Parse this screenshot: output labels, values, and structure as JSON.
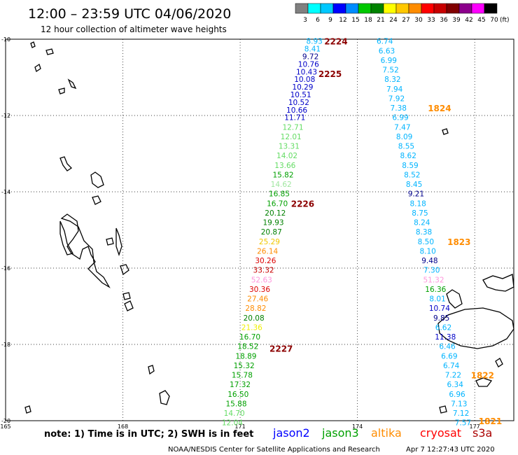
{
  "header": {
    "title": "12:00 – 23:59 UTC 04/06/2020",
    "subtitle": "12 hour collection of altimeter wave heights"
  },
  "colorbar": {
    "levels": [
      "3",
      "6",
      "9",
      "12",
      "15",
      "18",
      "21",
      "24",
      "27",
      "30",
      "33",
      "36",
      "39",
      "42",
      "45",
      "70"
    ],
    "unit": "(ft)",
    "colors": [
      "#808080",
      "#00ffff",
      "#00c8ff",
      "#0000ff",
      "#008cff",
      "#00c800",
      "#008200",
      "#ffff00",
      "#ffc800",
      "#ff8c00",
      "#ff0000",
      "#c80000",
      "#800000",
      "#8c008c",
      "#ff00ff",
      "#000000"
    ]
  },
  "footer": {
    "note": "note: 1) Time is in UTC; 2) SWH is in feet",
    "credit": "NOAA/NESDIS Center for Satellite Applications and Research",
    "timestamp": "Apr  7 12:27:43 UTC 2020"
  },
  "legend": [
    {
      "name": "jason2",
      "color": "#0000ff"
    },
    {
      "name": "jason3",
      "color": "#00a000"
    },
    {
      "name": "altika",
      "color": "#ff8c00"
    },
    {
      "name": "cryosat",
      "color": "#ff0000"
    },
    {
      "name": "s3a",
      "color": "#aa0000"
    }
  ],
  "chart_data": {
    "type": "scatter",
    "title": "12:00 – 23:59 UTC 04/06/2020",
    "subtitle": "12 hour collection of altimeter wave heights",
    "xlabel": "",
    "ylabel": "",
    "xlim": [
      165,
      178
    ],
    "ylim": [
      -20,
      -10
    ],
    "x_ticks": [
      "165",
      "168",
      "171",
      "174",
      "177"
    ],
    "y_ticks": [
      "-10",
      "-12",
      "-14",
      "-16",
      "-18",
      "-20"
    ],
    "grid": "dotted",
    "tracks": [
      {
        "points": [
          {
            "x": 172.9,
            "y": -10.05,
            "v": "8.93",
            "c": "#00b4ff"
          },
          {
            "x": 172.85,
            "y": -10.25,
            "v": "8.41",
            "c": "#00b4ff"
          },
          {
            "x": 172.8,
            "y": -10.45,
            "v": "9.72",
            "c": "#00008c"
          },
          {
            "x": 172.75,
            "y": -10.65,
            "v": "10.76",
            "c": "#0000c8"
          },
          {
            "x": 172.7,
            "y": -10.85,
            "v": "10.43",
            "c": "#0000c8"
          },
          {
            "x": 172.65,
            "y": -11.05,
            "v": "10.08",
            "c": "#0000c8"
          },
          {
            "x": 172.6,
            "y": -11.25,
            "v": "10.29",
            "c": "#0000c8"
          },
          {
            "x": 172.55,
            "y": -11.45,
            "v": "10.51",
            "c": "#0000c8"
          },
          {
            "x": 172.5,
            "y": -11.65,
            "v": "10.52",
            "c": "#0000c8"
          },
          {
            "x": 172.45,
            "y": -11.85,
            "v": "10.66",
            "c": "#0000c8"
          },
          {
            "x": 172.4,
            "y": -12.05,
            "v": "11.71",
            "c": "#0000c8"
          },
          {
            "x": 172.35,
            "y": -12.3,
            "v": "12.71",
            "c": "#64dc64"
          },
          {
            "x": 172.3,
            "y": -12.55,
            "v": "12.01",
            "c": "#64dc64"
          },
          {
            "x": 172.25,
            "y": -12.8,
            "v": "13.31",
            "c": "#64dc64"
          },
          {
            "x": 172.2,
            "y": -13.05,
            "v": "14.02",
            "c": "#64dc64"
          },
          {
            "x": 172.15,
            "y": -13.3,
            "v": "13.66",
            "c": "#64dc64"
          },
          {
            "x": 172.1,
            "y": -13.55,
            "v": "15.82",
            "c": "#00a000"
          },
          {
            "x": 172.05,
            "y": -13.8,
            "v": "14.62",
            "c": "#a0e6a0"
          },
          {
            "x": 172.0,
            "y": -14.05,
            "v": "16.85",
            "c": "#00a000"
          },
          {
            "x": 171.95,
            "y": -14.3,
            "v": "16.70",
            "c": "#00a000"
          },
          {
            "x": 171.9,
            "y": -14.55,
            "v": "20.12",
            "c": "#008000"
          },
          {
            "x": 171.85,
            "y": -14.8,
            "v": "19.93",
            "c": "#008000"
          },
          {
            "x": 171.8,
            "y": -15.05,
            "v": "20.87",
            "c": "#008000"
          },
          {
            "x": 171.75,
            "y": -15.3,
            "v": "25.29",
            "c": "#f0c800"
          },
          {
            "x": 171.7,
            "y": -15.55,
            "v": "26.14",
            "c": "#ff8c00"
          },
          {
            "x": 171.65,
            "y": -15.8,
            "v": "30.26",
            "c": "#dc0000"
          },
          {
            "x": 171.6,
            "y": -16.05,
            "v": "33.32",
            "c": "#c80000"
          },
          {
            "x": 171.55,
            "y": -16.3,
            "v": "52.63",
            "c": "#ff96dc"
          },
          {
            "x": 171.5,
            "y": -16.55,
            "v": "30.36",
            "c": "#dc0000"
          },
          {
            "x": 171.45,
            "y": -16.8,
            "v": "27.46",
            "c": "#ff8c00"
          },
          {
            "x": 171.4,
            "y": -17.05,
            "v": "28.82",
            "c": "#ff8c00"
          },
          {
            "x": 171.35,
            "y": -17.3,
            "v": "20.08",
            "c": "#008000"
          },
          {
            "x": 171.3,
            "y": -17.55,
            "v": "21.36",
            "c": "#f0f000"
          },
          {
            "x": 171.25,
            "y": -17.8,
            "v": "16.70",
            "c": "#00a000"
          },
          {
            "x": 171.2,
            "y": -18.05,
            "v": "18.52",
            "c": "#00a000"
          },
          {
            "x": 171.15,
            "y": -18.3,
            "v": "18.89",
            "c": "#00a000"
          },
          {
            "x": 171.1,
            "y": -18.55,
            "v": "15.32",
            "c": "#00a000"
          },
          {
            "x": 171.05,
            "y": -18.8,
            "v": "15.78",
            "c": "#00a000"
          },
          {
            "x": 171.0,
            "y": -19.05,
            "v": "17.32",
            "c": "#00a000"
          },
          {
            "x": 170.95,
            "y": -19.3,
            "v": "16.50",
            "c": "#00a000"
          },
          {
            "x": 170.9,
            "y": -19.55,
            "v": "15.88",
            "c": "#00a000"
          },
          {
            "x": 170.85,
            "y": -19.8,
            "v": "14.70",
            "c": "#64dc64"
          },
          {
            "x": 170.8,
            "y": -20.05,
            "v": "12.04",
            "c": "#64dc64"
          }
        ],
        "times": [
          {
            "x": 173.45,
            "y": -10.05,
            "t": "2224"
          },
          {
            "x": 173.3,
            "y": -10.9,
            "t": "2225"
          },
          {
            "x": 172.6,
            "y": -14.3,
            "t": "2226"
          },
          {
            "x": 172.05,
            "y": -18.1,
            "t": "2227"
          }
        ]
      },
      {
        "points": [
          {
            "x": 174.7,
            "y": -10.05,
            "v": "6.74",
            "c": "#00b4ff"
          },
          {
            "x": 174.75,
            "y": -10.3,
            "v": "6.63",
            "c": "#00b4ff"
          },
          {
            "x": 174.8,
            "y": -10.55,
            "v": "6.99",
            "c": "#00b4ff"
          },
          {
            "x": 174.85,
            "y": -10.8,
            "v": "7.52",
            "c": "#00b4ff"
          },
          {
            "x": 174.9,
            "y": -11.05,
            "v": "8.32",
            "c": "#00b4ff"
          },
          {
            "x": 174.95,
            "y": -11.3,
            "v": "7.94",
            "c": "#00b4ff"
          },
          {
            "x": 175.0,
            "y": -11.55,
            "v": "7.92",
            "c": "#00b4ff"
          },
          {
            "x": 175.05,
            "y": -11.8,
            "v": "7.38",
            "c": "#00b4ff"
          },
          {
            "x": 175.1,
            "y": -12.05,
            "v": "6.99",
            "c": "#00b4ff"
          },
          {
            "x": 175.15,
            "y": -12.3,
            "v": "7.47",
            "c": "#00b4ff"
          },
          {
            "x": 175.2,
            "y": -12.55,
            "v": "8.09",
            "c": "#00b4ff"
          },
          {
            "x": 175.25,
            "y": -12.8,
            "v": "8.55",
            "c": "#00b4ff"
          },
          {
            "x": 175.3,
            "y": -13.05,
            "v": "8.62",
            "c": "#00b4ff"
          },
          {
            "x": 175.35,
            "y": -13.3,
            "v": "8.59",
            "c": "#00b4ff"
          },
          {
            "x": 175.4,
            "y": -13.55,
            "v": "8.52",
            "c": "#00b4ff"
          },
          {
            "x": 175.45,
            "y": -13.8,
            "v": "8.45",
            "c": "#00b4ff"
          },
          {
            "x": 175.5,
            "y": -14.05,
            "v": "9.21",
            "c": "#00008c"
          },
          {
            "x": 175.55,
            "y": -14.3,
            "v": "8.18",
            "c": "#00b4ff"
          },
          {
            "x": 175.6,
            "y": -14.55,
            "v": "8.75",
            "c": "#00b4ff"
          },
          {
            "x": 175.65,
            "y": -14.8,
            "v": "8.24",
            "c": "#00b4ff"
          },
          {
            "x": 175.7,
            "y": -15.05,
            "v": "8.38",
            "c": "#00b4ff"
          },
          {
            "x": 175.75,
            "y": -15.3,
            "v": "8.50",
            "c": "#00b4ff"
          },
          {
            "x": 175.8,
            "y": -15.55,
            "v": "8.10",
            "c": "#00b4ff"
          },
          {
            "x": 175.85,
            "y": -15.8,
            "v": "9.48",
            "c": "#00008c"
          },
          {
            "x": 175.9,
            "y": -16.05,
            "v": "7.30",
            "c": "#00b4ff"
          },
          {
            "x": 175.95,
            "y": -16.3,
            "v": "51.32",
            "c": "#ff96dc"
          },
          {
            "x": 176.0,
            "y": -16.55,
            "v": "16.36",
            "c": "#00a000"
          },
          {
            "x": 176.05,
            "y": -16.8,
            "v": "8.01",
            "c": "#00b4ff"
          },
          {
            "x": 176.1,
            "y": -17.05,
            "v": "10.74",
            "c": "#0000c8"
          },
          {
            "x": 176.15,
            "y": -17.3,
            "v": "9.85",
            "c": "#00008c"
          },
          {
            "x": 176.2,
            "y": -17.55,
            "v": "6.62",
            "c": "#00b4ff"
          },
          {
            "x": 176.25,
            "y": -17.8,
            "v": "11.38",
            "c": "#0000c8"
          },
          {
            "x": 176.3,
            "y": -18.05,
            "v": "6.46",
            "c": "#00b4ff"
          },
          {
            "x": 176.35,
            "y": -18.3,
            "v": "6.69",
            "c": "#00b4ff"
          },
          {
            "x": 176.4,
            "y": -18.55,
            "v": "6.74",
            "c": "#00b4ff"
          },
          {
            "x": 176.45,
            "y": -18.8,
            "v": "7.22",
            "c": "#00b4ff"
          },
          {
            "x": 176.5,
            "y": -19.05,
            "v": "6.34",
            "c": "#00b4ff"
          },
          {
            "x": 176.55,
            "y": -19.3,
            "v": "6.96",
            "c": "#00b4ff"
          },
          {
            "x": 176.6,
            "y": -19.55,
            "v": "7.13",
            "c": "#00b4ff"
          },
          {
            "x": 176.65,
            "y": -19.8,
            "v": "7.12",
            "c": "#00b4ff"
          },
          {
            "x": 176.7,
            "y": -20.05,
            "v": "7.57",
            "c": "#00b4ff"
          }
        ],
        "times": [
          {
            "x": 176.1,
            "y": -11.8,
            "t": "1824"
          },
          {
            "x": 176.6,
            "y": -15.3,
            "t": "1823"
          },
          {
            "x": 177.2,
            "y": -18.8,
            "t": "1822"
          },
          {
            "x": 177.4,
            "y": -20.0,
            "t": "1821"
          }
        ]
      }
    ]
  }
}
